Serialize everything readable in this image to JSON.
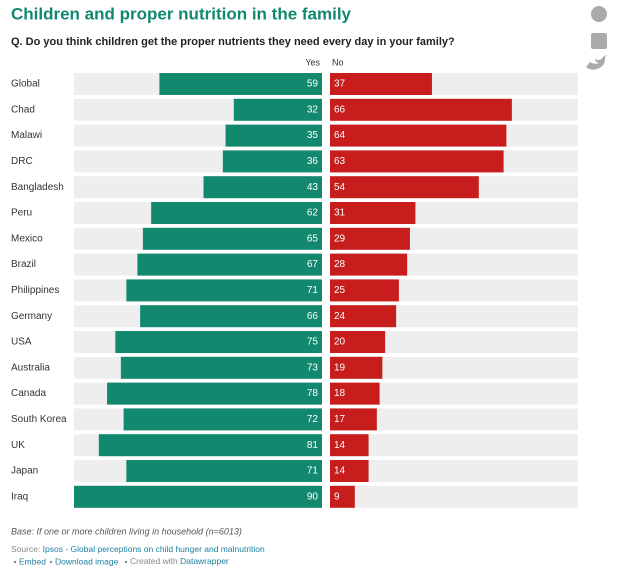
{
  "chart_data": {
    "type": "diverging_bar",
    "title": "Children and proper nutrition in the family",
    "subtitle": "Q. Do you think children get the proper nutrients they need every day in your family?",
    "categories": [
      "Global",
      "Chad",
      "Malawi",
      "DRC",
      "Bangladesh",
      "Peru",
      "Mexico",
      "Brazil",
      "Philippines",
      "Germany",
      "USA",
      "Australia",
      "Canada",
      "South Korea",
      "UK",
      "Japan",
      "Iraq"
    ],
    "series": [
      {
        "name": "Yes",
        "color": "#12896f",
        "values": [
          59,
          32,
          35,
          36,
          43,
          62,
          65,
          67,
          71,
          66,
          75,
          73,
          78,
          72,
          81,
          71,
          90
        ]
      },
      {
        "name": "No",
        "color": "#c71e1d",
        "values": [
          37,
          66,
          64,
          63,
          54,
          31,
          29,
          28,
          25,
          24,
          20,
          19,
          18,
          17,
          14,
          14,
          9
        ]
      }
    ],
    "note": "Base: If one or more children living in household (n=6013)"
  },
  "footer": {
    "source_label": "Source:",
    "source": "Ipsos - Global perceptions on child hunger and malnutrition",
    "links": [
      "Embed",
      "Download image"
    ],
    "credit": "Created with",
    "credit_link": "Datawrapper"
  }
}
